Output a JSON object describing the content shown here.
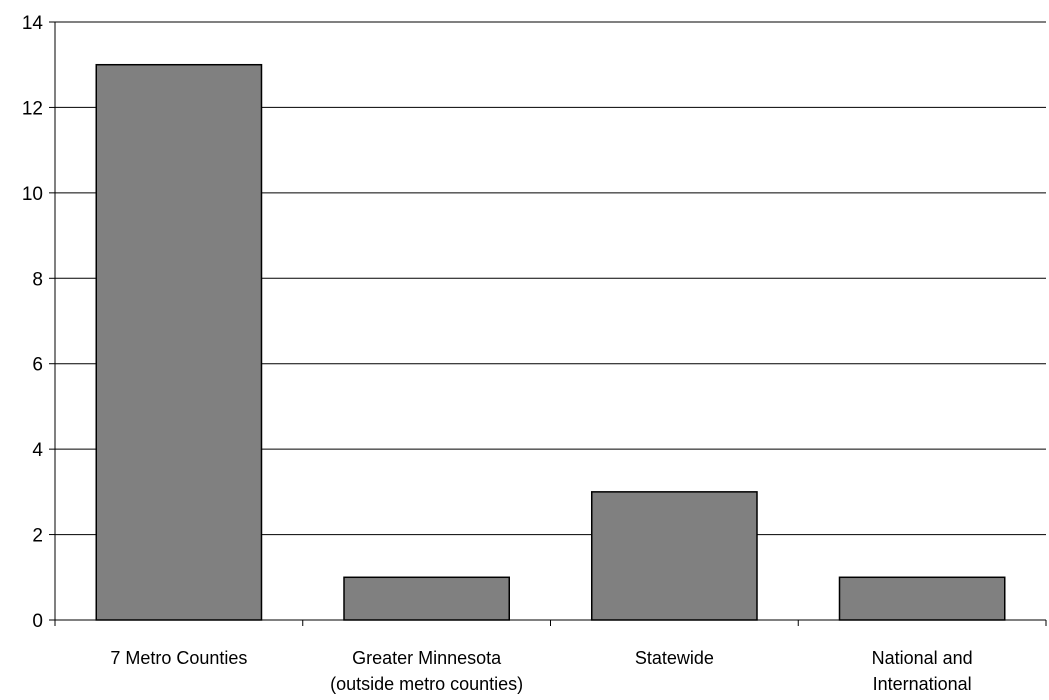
{
  "chart_data": {
    "type": "bar",
    "categories": [
      [
        "7 Metro Counties"
      ],
      [
        "Greater Minnesota",
        "(outside metro counties)"
      ],
      [
        "Statewide"
      ],
      [
        "National and",
        "International"
      ]
    ],
    "values": [
      13,
      1,
      3,
      1
    ],
    "ylim": [
      0,
      14
    ],
    "yticks": [
      0,
      2,
      4,
      6,
      8,
      10,
      12,
      14
    ],
    "grid": true,
    "bar_color": "#808080",
    "title": "",
    "xlabel": "",
    "ylabel": ""
  }
}
